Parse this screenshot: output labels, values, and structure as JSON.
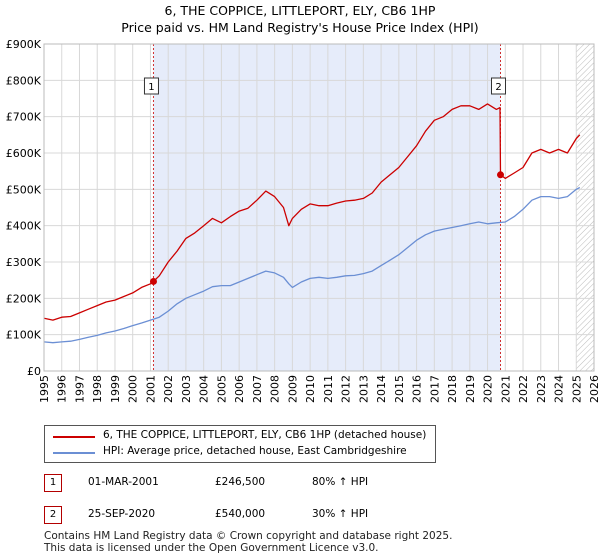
{
  "title_line1": "6, THE COPPICE, LITTLEPORT, ELY, CB6 1HP",
  "title_line2": "Price paid vs. HM Land Registry's House Price Index (HPI)",
  "chart_data": {
    "type": "line",
    "xlim": [
      1995,
      2026
    ],
    "ylim": [
      0,
      900000
    ],
    "x_ticks": [
      "1995",
      "1996",
      "1997",
      "1998",
      "1999",
      "2000",
      "2001",
      "2002",
      "2003",
      "2004",
      "2005",
      "2006",
      "2007",
      "2008",
      "2009",
      "2010",
      "2011",
      "2012",
      "2013",
      "2014",
      "2015",
      "2016",
      "2017",
      "2018",
      "2019",
      "2020",
      "2021",
      "2022",
      "2023",
      "2024",
      "2025",
      "2026"
    ],
    "y_ticks": [
      {
        "value": 0,
        "label": "£0"
      },
      {
        "value": 100000,
        "label": "£100K"
      },
      {
        "value": 200000,
        "label": "£200K"
      },
      {
        "value": 300000,
        "label": "£300K"
      },
      {
        "value": 400000,
        "label": "£400K"
      },
      {
        "value": 500000,
        "label": "£500K"
      },
      {
        "value": 600000,
        "label": "£600K"
      },
      {
        "value": 700000,
        "label": "£700K"
      },
      {
        "value": 800000,
        "label": "£800K"
      },
      {
        "value": 900000,
        "label": "£900K"
      }
    ],
    "ownership_span": [
      2001.17,
      2020.73
    ],
    "hatched_from": 2025.0,
    "series": [
      {
        "name": "6, THE COPPICE, LITTLEPORT, ELY, CB6 1HP (detached house)",
        "color": "#cc0000",
        "x": [
          1995,
          1995.5,
          1996,
          1996.5,
          1997,
          1997.5,
          1998,
          1998.5,
          1999,
          1999.5,
          2000,
          2000.5,
          2001,
          2001.17,
          2001.5,
          2002,
          2002.5,
          2003,
          2003.5,
          2004,
          2004.5,
          2005,
          2005.5,
          2006,
          2006.5,
          2007,
          2007.5,
          2008,
          2008.5,
          2008.8,
          2009,
          2009.5,
          2010,
          2010.5,
          2011,
          2011.5,
          2012,
          2012.5,
          2013,
          2013.5,
          2014,
          2014.5,
          2015,
          2015.5,
          2016,
          2016.5,
          2017,
          2017.5,
          2018,
          2018.5,
          2019,
          2019.5,
          2020,
          2020.5,
          2020.7,
          2020.73,
          2021,
          2021.5,
          2022,
          2022.5,
          2023,
          2023.5,
          2024,
          2024.5,
          2025,
          2025.2
        ],
        "y": [
          145000,
          140000,
          148000,
          150000,
          160000,
          170000,
          180000,
          190000,
          195000,
          205000,
          215000,
          230000,
          240000,
          246500,
          262000,
          300000,
          330000,
          365000,
          380000,
          400000,
          420000,
          408000,
          425000,
          440000,
          448000,
          470000,
          495000,
          480000,
          450000,
          400000,
          420000,
          445000,
          460000,
          455000,
          455000,
          462000,
          468000,
          470000,
          475000,
          490000,
          520000,
          540000,
          560000,
          590000,
          620000,
          660000,
          690000,
          700000,
          720000,
          730000,
          730000,
          720000,
          735000,
          720000,
          725000,
          540000,
          530000,
          545000,
          560000,
          600000,
          610000,
          600000,
          610000,
          600000,
          640000,
          650000
        ]
      },
      {
        "name": "HPI: Average price, detached house, East Cambridgeshire",
        "color": "#6b8fd4",
        "x": [
          1995,
          1995.5,
          1996,
          1996.5,
          1997,
          1997.5,
          1998,
          1998.5,
          1999,
          1999.5,
          2000,
          2000.5,
          2001,
          2001.5,
          2002,
          2002.5,
          2003,
          2003.5,
          2004,
          2004.5,
          2005,
          2005.5,
          2006,
          2006.5,
          2007,
          2007.5,
          2008,
          2008.5,
          2008.8,
          2009,
          2009.5,
          2010,
          2010.5,
          2011,
          2011.5,
          2012,
          2012.5,
          2013,
          2013.5,
          2014,
          2014.5,
          2015,
          2015.5,
          2016,
          2016.5,
          2017,
          2017.5,
          2018,
          2018.5,
          2019,
          2019.5,
          2020,
          2020.5,
          2021,
          2021.5,
          2022,
          2022.5,
          2023,
          2023.5,
          2024,
          2024.5,
          2025,
          2025.2
        ],
        "y": [
          80000,
          78000,
          80000,
          82000,
          87000,
          93000,
          98000,
          105000,
          110000,
          117000,
          125000,
          132000,
          140000,
          148000,
          165000,
          185000,
          200000,
          210000,
          220000,
          232000,
          235000,
          235000,
          245000,
          255000,
          265000,
          275000,
          270000,
          258000,
          240000,
          230000,
          245000,
          255000,
          258000,
          255000,
          258000,
          262000,
          263000,
          268000,
          275000,
          290000,
          305000,
          320000,
          340000,
          360000,
          375000,
          385000,
          390000,
          395000,
          400000,
          405000,
          410000,
          405000,
          408000,
          410000,
          425000,
          445000,
          470000,
          480000,
          480000,
          475000,
          480000,
          500000,
          505000
        ]
      }
    ],
    "sale_markers": [
      {
        "id": "1",
        "x": 2001.17,
        "y": 246500
      },
      {
        "id": "2",
        "x": 2020.73,
        "y": 540000
      }
    ]
  },
  "legend": {
    "property_label": "6, THE COPPICE, LITTLEPORT, ELY, CB6 1HP (detached house)",
    "hpi_label": "HPI: Average price, detached house, East Cambridgeshire",
    "property_color": "#cc0000",
    "hpi_color": "#6b8fd4"
  },
  "sales": [
    {
      "id": "1",
      "date": "01-MAR-2001",
      "price": "£246,500",
      "hpi": "80% ↑ HPI"
    },
    {
      "id": "2",
      "date": "25-SEP-2020",
      "price": "£540,000",
      "hpi": "30% ↑ HPI"
    }
  ],
  "footer_line1": "Contains HM Land Registry data © Crown copyright and database right 2025.",
  "footer_line2": "This data is licensed under the Open Government Licence v3.0."
}
